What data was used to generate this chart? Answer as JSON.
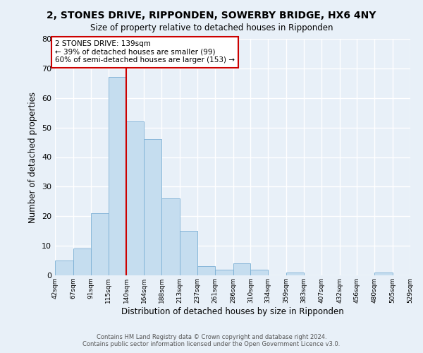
{
  "title": "2, STONES DRIVE, RIPPONDEN, SOWERBY BRIDGE, HX6 4NY",
  "subtitle": "Size of property relative to detached houses in Ripponden",
  "xlabel": "Distribution of detached houses by size in Ripponden",
  "ylabel": "Number of detached properties",
  "bar_color": "#c5ddef",
  "bar_edge_color": "#7aafd4",
  "background_color": "#e8f0f8",
  "grid_color": "#ffffff",
  "bin_edges": [
    42,
    67,
    91,
    115,
    140,
    164,
    188,
    213,
    237,
    261,
    286,
    310,
    334,
    359,
    383,
    407,
    432,
    456,
    480,
    505,
    529
  ],
  "bin_labels": [
    "42sqm",
    "67sqm",
    "91sqm",
    "115sqm",
    "140sqm",
    "164sqm",
    "188sqm",
    "213sqm",
    "237sqm",
    "261sqm",
    "286sqm",
    "310sqm",
    "334sqm",
    "359sqm",
    "383sqm",
    "407sqm",
    "432sqm",
    "456sqm",
    "480sqm",
    "505sqm",
    "529sqm"
  ],
  "bar_heights": [
    5,
    9,
    21,
    67,
    52,
    46,
    26,
    15,
    3,
    2,
    4,
    2,
    0,
    1,
    0,
    0,
    0,
    0,
    1,
    0
  ],
  "ylim": [
    0,
    80
  ],
  "yticks": [
    0,
    10,
    20,
    30,
    40,
    50,
    60,
    70,
    80
  ],
  "property_line_x": 140,
  "property_line_color": "#cc0000",
  "annotation_text": "2 STONES DRIVE: 139sqm\n← 39% of detached houses are smaller (99)\n60% of semi-detached houses are larger (153) →",
  "annotation_box_color": "#ffffff",
  "annotation_box_edge": "#cc0000",
  "footer_line1": "Contains HM Land Registry data © Crown copyright and database right 2024.",
  "footer_line2": "Contains public sector information licensed under the Open Government Licence v3.0."
}
